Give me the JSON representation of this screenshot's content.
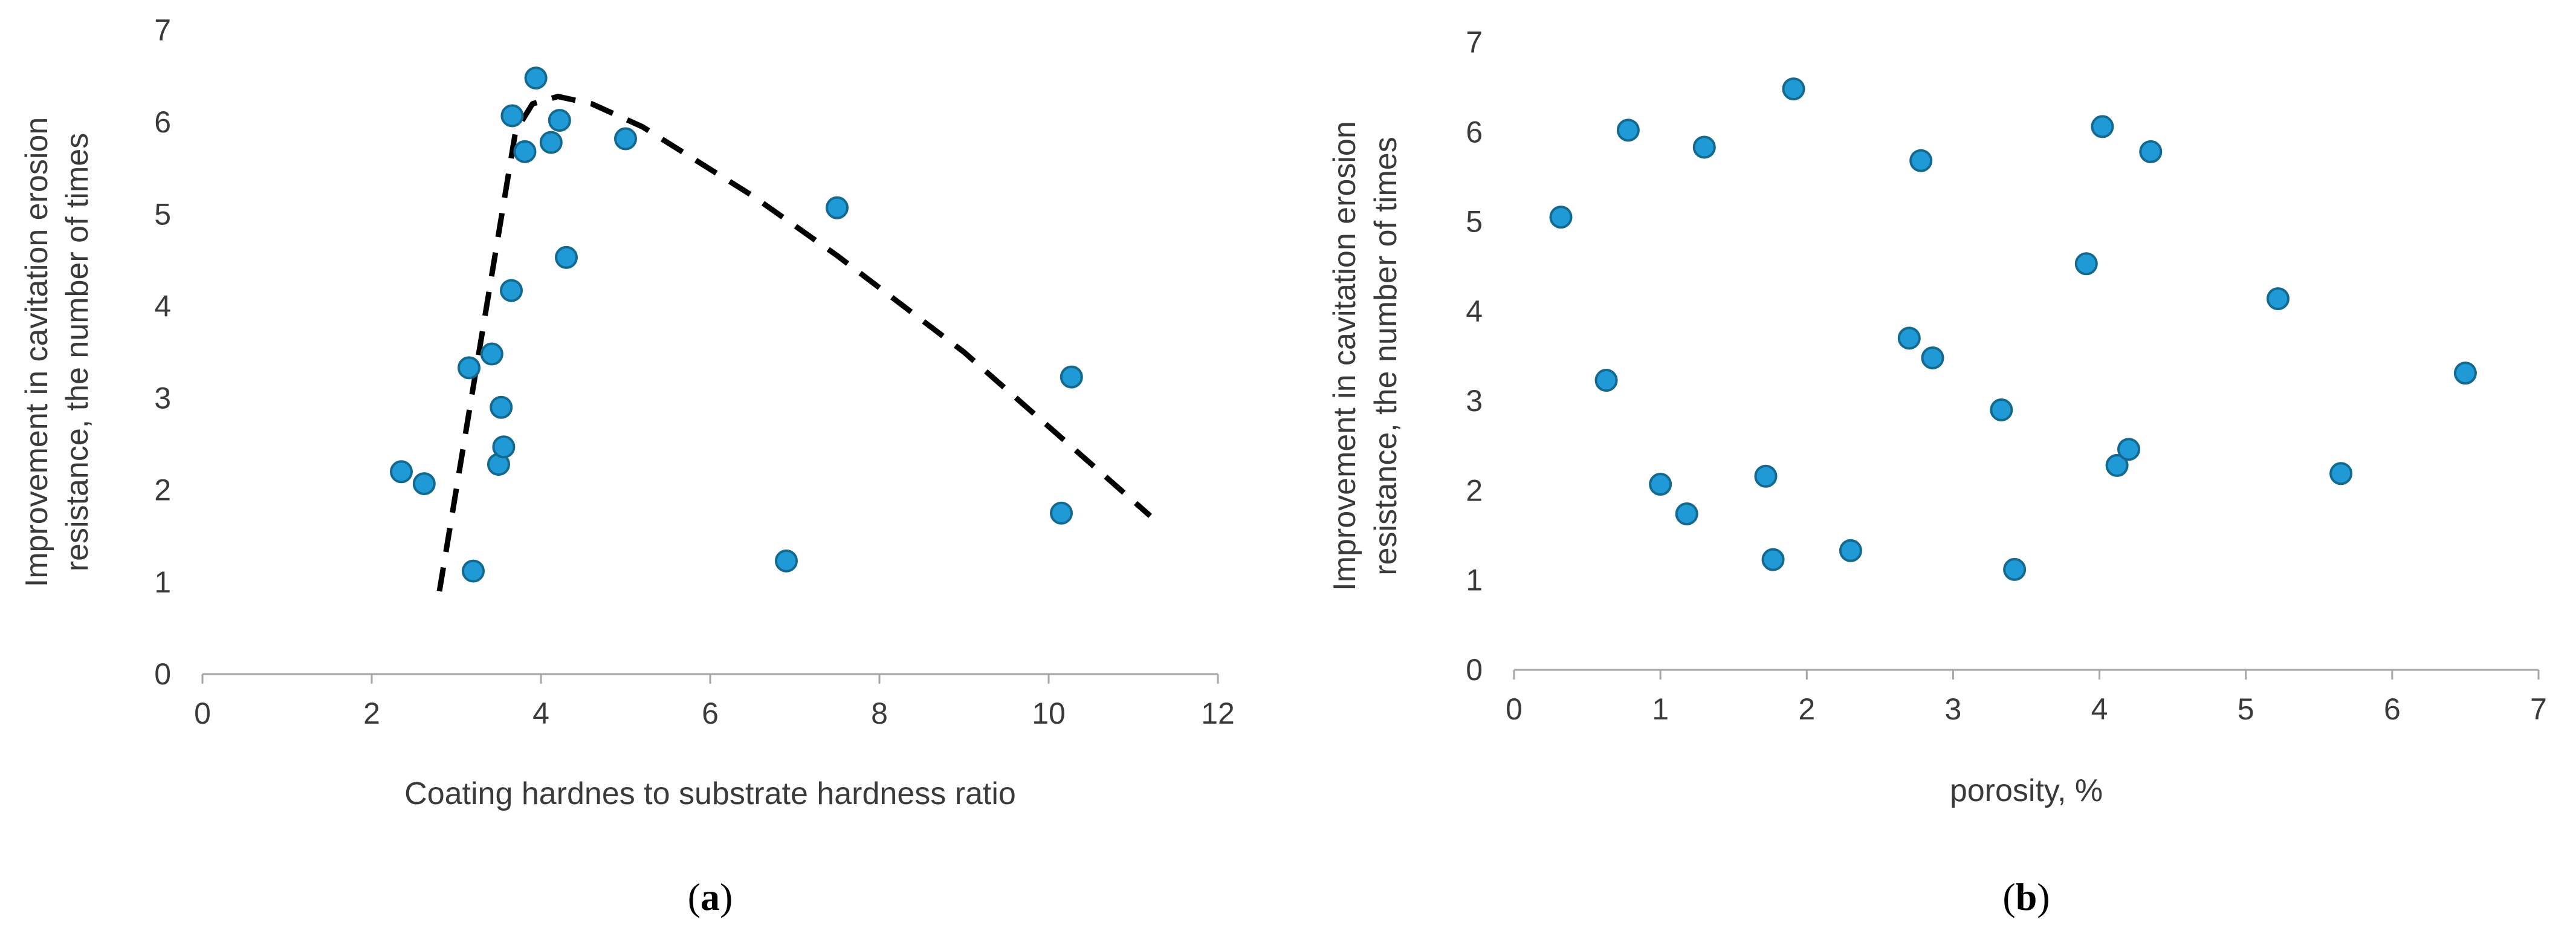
{
  "chart_data": [
    {
      "type": "scatter",
      "panel_label": "a",
      "xlabel": "Coating hardnes to substrate hardness ratio",
      "ylabel_lines": [
        "Improvement in cavitation erosion",
        "resistance, the number of times"
      ],
      "xlim": [
        0,
        12
      ],
      "ylim": [
        0,
        7
      ],
      "xticks": [
        0,
        2,
        4,
        6,
        8,
        10,
        12
      ],
      "yticks": [
        0,
        1,
        2,
        3,
        4,
        5,
        6,
        7
      ],
      "grid": false,
      "points": [
        {
          "x": 2.35,
          "y": 2.2
        },
        {
          "x": 2.62,
          "y": 2.07
        },
        {
          "x": 3.15,
          "y": 3.33
        },
        {
          "x": 3.2,
          "y": 1.12
        },
        {
          "x": 3.42,
          "y": 3.48
        },
        {
          "x": 3.5,
          "y": 2.28
        },
        {
          "x": 3.53,
          "y": 2.9
        },
        {
          "x": 3.56,
          "y": 2.47
        },
        {
          "x": 3.65,
          "y": 4.17
        },
        {
          "x": 3.66,
          "y": 6.07
        },
        {
          "x": 3.81,
          "y": 5.68
        },
        {
          "x": 3.94,
          "y": 6.48
        },
        {
          "x": 4.12,
          "y": 5.78
        },
        {
          "x": 4.22,
          "y": 6.02
        },
        {
          "x": 4.3,
          "y": 4.53
        },
        {
          "x": 5.0,
          "y": 5.82
        },
        {
          "x": 6.9,
          "y": 1.23
        },
        {
          "x": 7.5,
          "y": 5.07
        },
        {
          "x": 10.15,
          "y": 1.75
        },
        {
          "x": 10.27,
          "y": 3.23
        }
      ],
      "trendline": {
        "style": "dashed",
        "points": [
          {
            "x": 2.8,
            "y": 0.9
          },
          {
            "x": 3.7,
            "y": 5.9
          },
          {
            "x": 3.9,
            "y": 6.2
          },
          {
            "x": 4.2,
            "y": 6.28
          },
          {
            "x": 4.6,
            "y": 6.2
          },
          {
            "x": 5.2,
            "y": 5.95
          },
          {
            "x": 6.5,
            "y": 5.2
          },
          {
            "x": 7.5,
            "y": 4.55
          },
          {
            "x": 9.0,
            "y": 3.5
          },
          {
            "x": 11.2,
            "y": 1.72
          }
        ]
      }
    },
    {
      "type": "scatter",
      "panel_label": "b",
      "xlabel": "porosity, %",
      "ylabel_lines": [
        "Improvement in cavitation erosion",
        "resistance, the number of times"
      ],
      "xlim": [
        0,
        7
      ],
      "ylim": [
        0,
        7
      ],
      "xticks": [
        0,
        1,
        2,
        3,
        4,
        5,
        6,
        7
      ],
      "yticks": [
        0,
        1,
        2,
        3,
        4,
        5,
        6,
        7
      ],
      "grid": false,
      "points": [
        {
          "x": 0.32,
          "y": 5.05
        },
        {
          "x": 0.63,
          "y": 3.23
        },
        {
          "x": 0.78,
          "y": 6.02
        },
        {
          "x": 1.0,
          "y": 2.07
        },
        {
          "x": 1.18,
          "y": 1.74
        },
        {
          "x": 1.3,
          "y": 5.83
        },
        {
          "x": 1.72,
          "y": 2.16
        },
        {
          "x": 1.77,
          "y": 1.23
        },
        {
          "x": 1.91,
          "y": 6.48
        },
        {
          "x": 2.3,
          "y": 1.33
        },
        {
          "x": 2.7,
          "y": 3.7
        },
        {
          "x": 2.78,
          "y": 5.68
        },
        {
          "x": 2.86,
          "y": 3.48
        },
        {
          "x": 3.33,
          "y": 2.9
        },
        {
          "x": 3.42,
          "y": 1.12
        },
        {
          "x": 3.91,
          "y": 4.53
        },
        {
          "x": 4.02,
          "y": 6.06
        },
        {
          "x": 4.12,
          "y": 2.28
        },
        {
          "x": 4.2,
          "y": 2.46
        },
        {
          "x": 4.35,
          "y": 5.78
        },
        {
          "x": 5.22,
          "y": 4.14
        },
        {
          "x": 5.65,
          "y": 2.19
        },
        {
          "x": 6.5,
          "y": 3.31
        }
      ]
    }
  ]
}
